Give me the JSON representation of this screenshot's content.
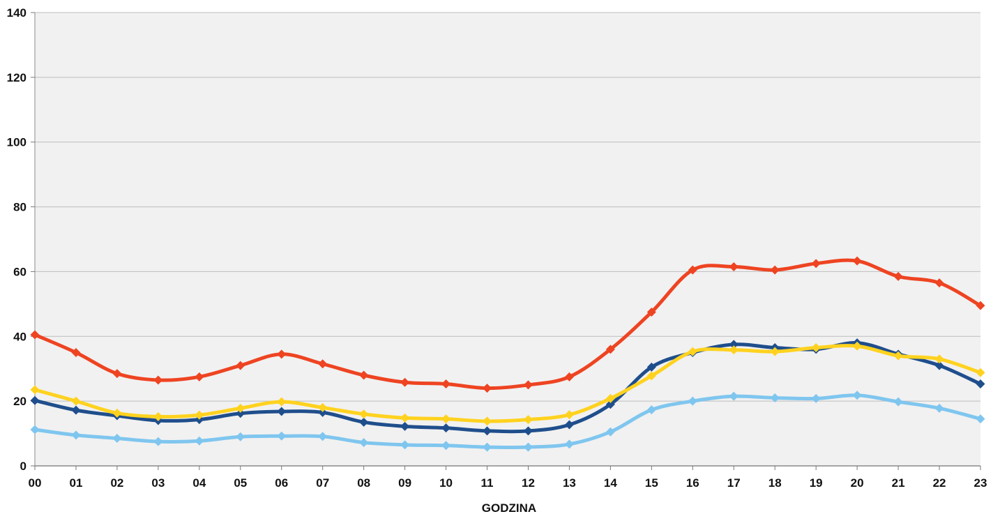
{
  "chart_data": {
    "type": "line",
    "xlabel": "GODZINA",
    "ylabel": "",
    "ylim": [
      0,
      140
    ],
    "yticks": [
      0,
      20,
      40,
      60,
      80,
      100,
      120,
      140
    ],
    "categories": [
      "00",
      "01",
      "02",
      "03",
      "04",
      "05",
      "06",
      "07",
      "08",
      "09",
      "10",
      "11",
      "12",
      "13",
      "14",
      "15",
      "16",
      "17",
      "18",
      "19",
      "20",
      "21",
      "22",
      "23"
    ],
    "grid": true,
    "legend": "none",
    "series": [
      {
        "color": "#ee4422",
        "values": [
          40.5,
          35,
          28.5,
          26.5,
          27.5,
          31,
          34.5,
          31.5,
          28,
          25.8,
          25.3,
          24,
          25,
          27.5,
          36,
          47.5,
          60.5,
          61.5,
          60.5,
          62.5,
          63.3,
          58.5,
          56.5,
          49.5
        ]
      },
      {
        "color": "#1f4e8c",
        "values": [
          20.2,
          17.2,
          15.5,
          14,
          14.3,
          16.2,
          16.8,
          16.5,
          13.5,
          12.2,
          11.7,
          10.8,
          10.8,
          12.7,
          19,
          30.5,
          35,
          37.5,
          36.5,
          36,
          38,
          34.5,
          31,
          25.3
        ]
      },
      {
        "color": "#ffd21f",
        "values": [
          23.5,
          20,
          16.3,
          15.2,
          15.7,
          17.8,
          19.8,
          18,
          16,
          14.8,
          14.5,
          13.8,
          14.3,
          15.8,
          20.8,
          27.8,
          35.3,
          35.8,
          35.3,
          36.5,
          37,
          34,
          33,
          28.8
        ]
      },
      {
        "color": "#7fc6ef",
        "values": [
          11.2,
          9.5,
          8.5,
          7.5,
          7.7,
          9,
          9.2,
          9.1,
          7.2,
          6.5,
          6.3,
          5.8,
          5.8,
          6.7,
          10.5,
          17.3,
          20,
          21.5,
          21,
          20.8,
          21.8,
          19.8,
          17.8,
          14.5
        ]
      }
    ]
  }
}
